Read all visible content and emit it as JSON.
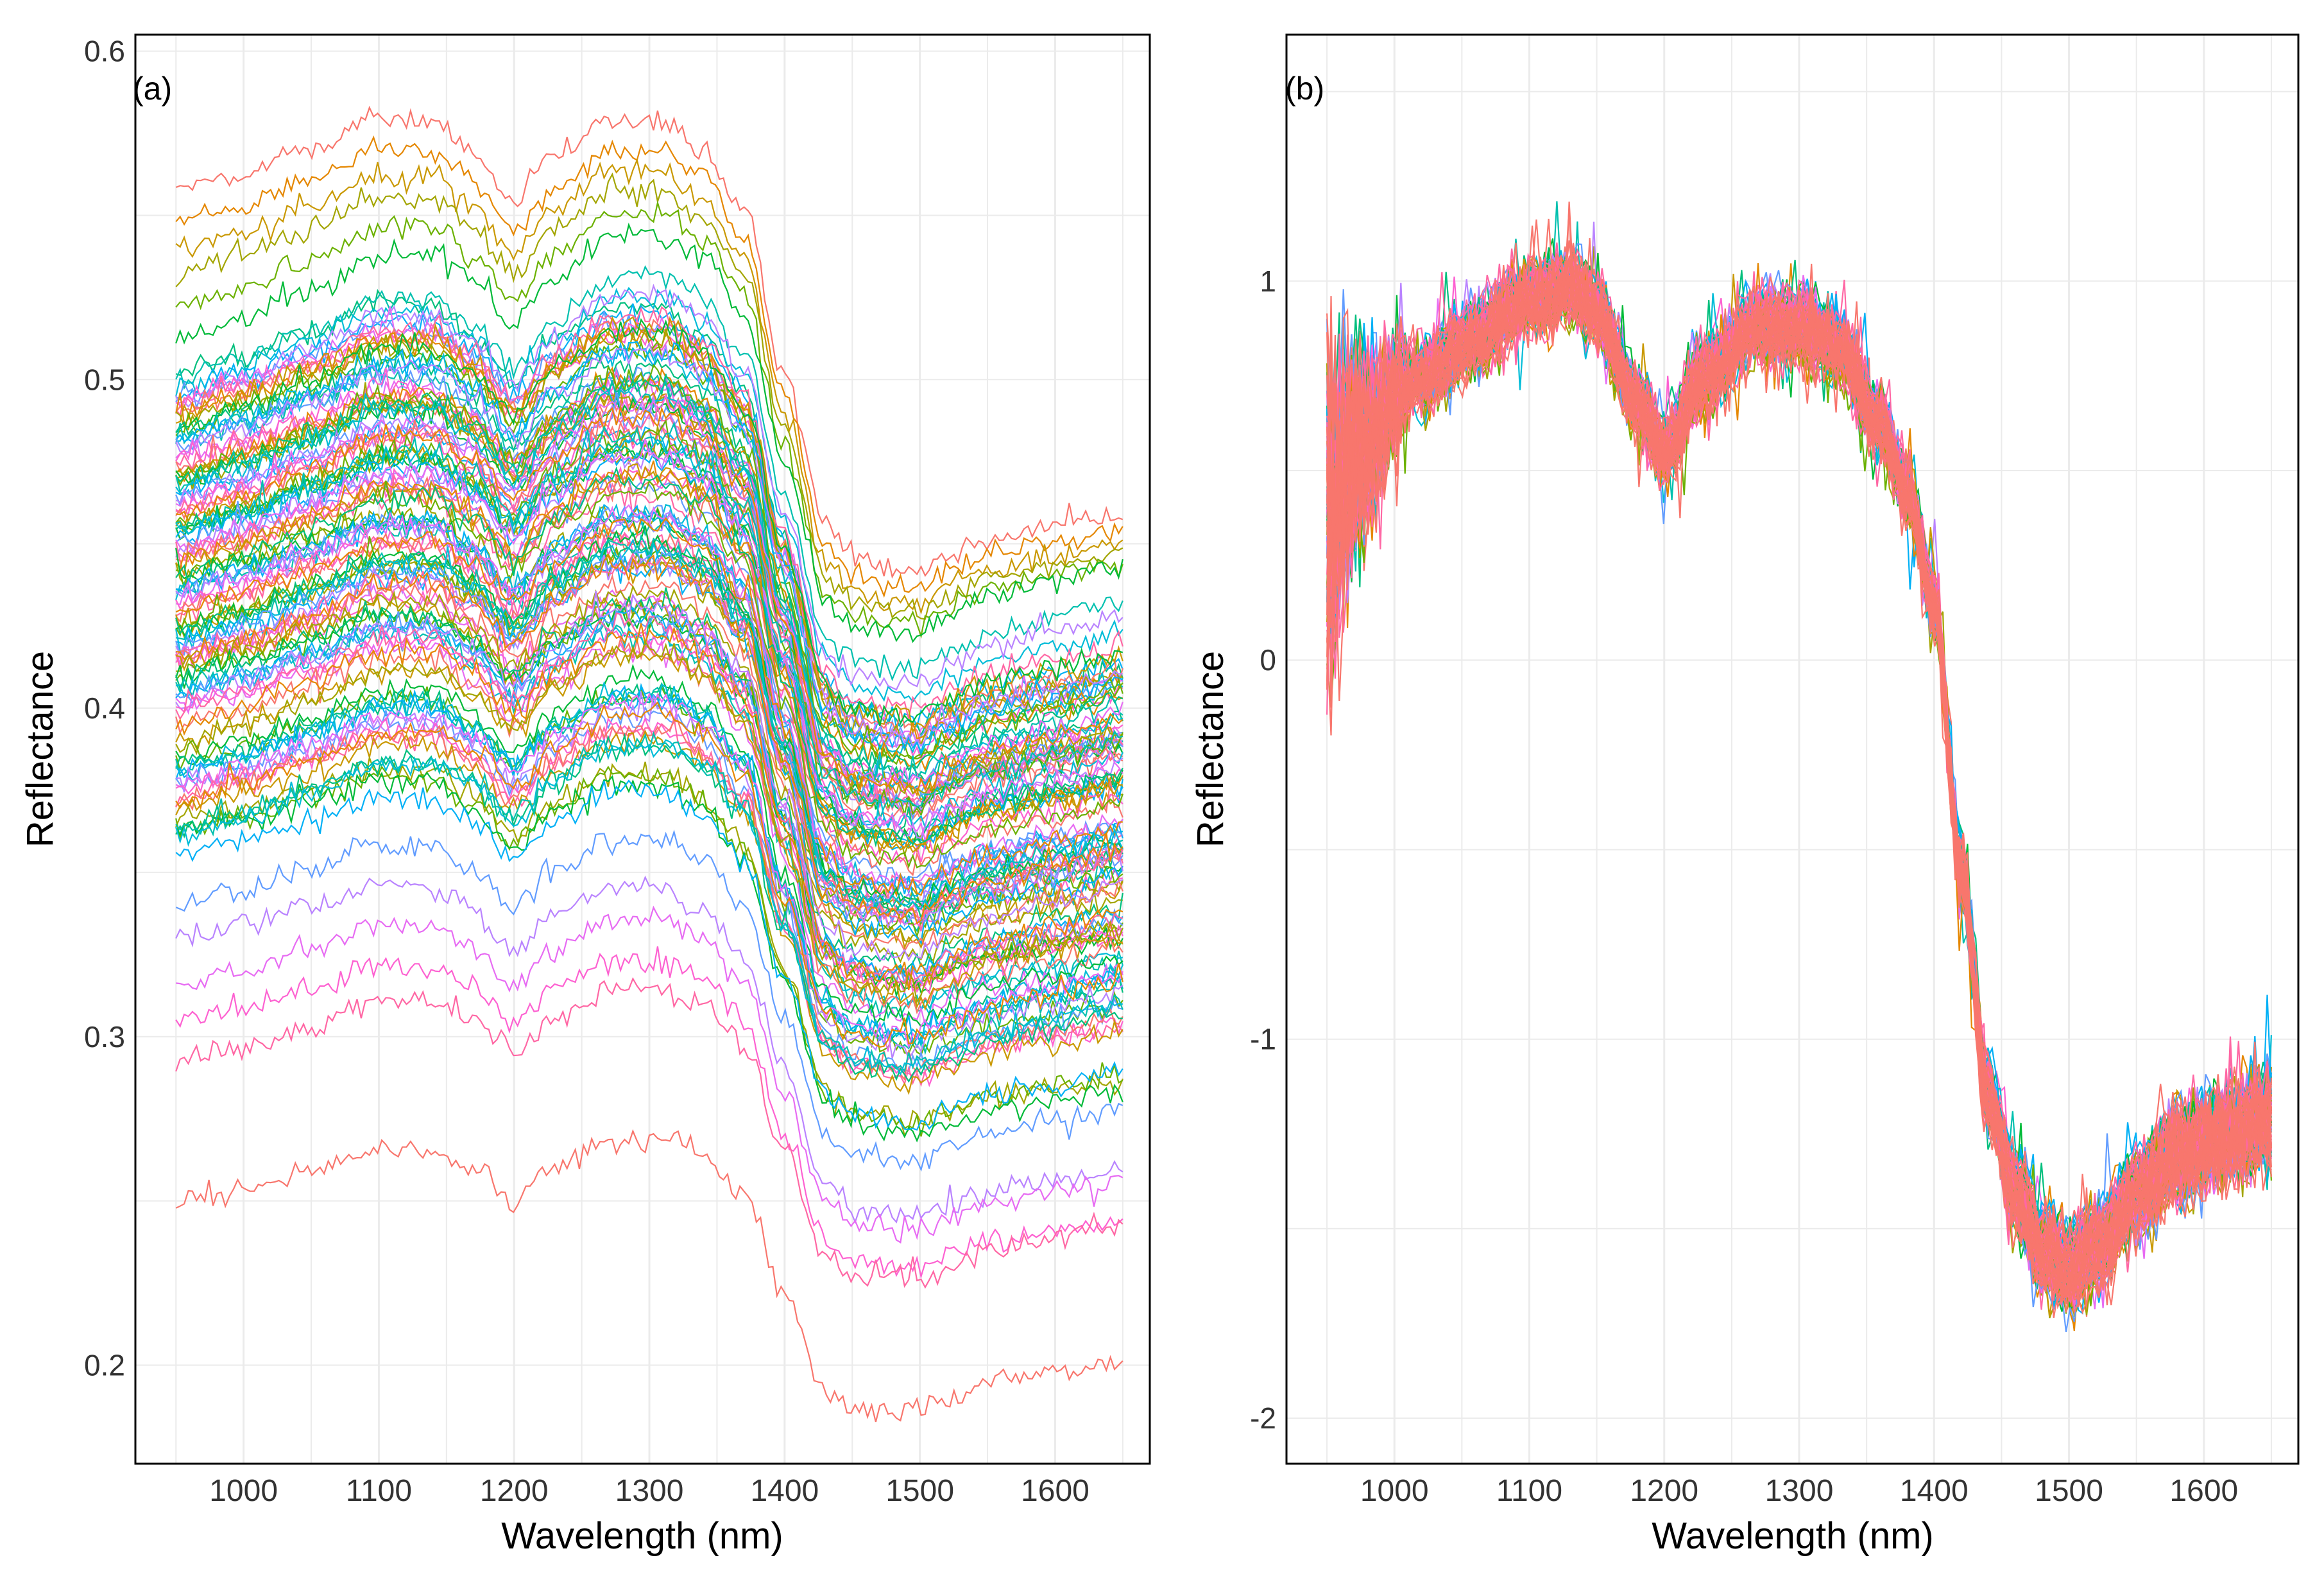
{
  "chart_data": [
    {
      "panel": "(a)",
      "type": "line",
      "xlabel": "Wavelength (nm)",
      "ylabel": "Reflectance",
      "xlim": [
        920,
        1670
      ],
      "ylim": [
        0.17,
        0.605
      ],
      "xticks": [
        "1000",
        "1100",
        "1200",
        "1300",
        "1400",
        "1500",
        "1600"
      ],
      "yticks": [
        "0.2",
        "0.3",
        "0.4",
        "0.5",
        "0.6"
      ],
      "grid": true,
      "series_count_note": "about 130 raw NIR reflectance spectra, one per sample",
      "wavelength_range_nm": [
        950,
        1650
      ],
      "shape_nodes_x": [
        950,
        1000,
        1050,
        1100,
        1140,
        1170,
        1200,
        1230,
        1270,
        1310,
        1340,
        1370,
        1400,
        1430,
        1450,
        1480,
        1500,
        1520,
        1550,
        1600,
        1650
      ],
      "shape_nodes_y": [
        0.0,
        0.005,
        0.012,
        0.02,
        0.02,
        0.012,
        0.0,
        0.012,
        0.022,
        0.022,
        0.015,
        0.0,
        -0.04,
        -0.078,
        -0.085,
        -0.087,
        -0.088,
        -0.083,
        -0.078,
        -0.074,
        -0.07
      ],
      "representative_levels_at_1000nm": [
        0.558,
        0.548,
        0.54,
        0.532,
        0.522,
        0.512,
        0.503,
        0.497,
        0.491,
        0.486,
        0.481,
        0.475,
        0.47,
        0.465,
        0.46,
        0.455,
        0.45,
        0.445,
        0.44,
        0.435,
        0.43,
        0.425,
        0.42,
        0.415,
        0.41,
        0.405,
        0.4,
        0.395,
        0.39,
        0.385,
        0.38,
        0.375,
        0.37,
        0.362,
        0.355,
        0.34,
        0.33,
        0.316,
        0.305,
        0.292,
        0.249
      ],
      "palette": [
        "#F8766D",
        "#E58700",
        "#C99800",
        "#A3A500",
        "#6BB100",
        "#00BA38",
        "#00BF7D",
        "#00C0AF",
        "#00BCD8",
        "#00B0F6",
        "#619CFF",
        "#B983FF",
        "#E76BF3",
        "#FD61D1",
        "#FF67A4"
      ]
    },
    {
      "panel": "(b)",
      "type": "line",
      "xlabel": "Wavelength (nm)",
      "ylabel": "Reflectance",
      "xlim": [
        920,
        1670
      ],
      "ylim": [
        -2.12,
        1.65
      ],
      "xticks": [
        "1000",
        "1100",
        "1200",
        "1300",
        "1400",
        "1500",
        "1600"
      ],
      "yticks": [
        "-2",
        "-1",
        "0",
        "1"
      ],
      "grid": true,
      "series_count_note": "same spectra after SNV preprocessing, overlapping band",
      "wavelength_range_nm": [
        950,
        1650
      ],
      "shape_nodes_x": [
        950,
        980,
        1020,
        1060,
        1100,
        1130,
        1150,
        1180,
        1200,
        1230,
        1270,
        1300,
        1330,
        1360,
        1380,
        1400,
        1420,
        1440,
        1460,
        1480,
        1500,
        1520,
        1550,
        1580,
        1610,
        1650
      ],
      "shape_nodes_y": [
        0.55,
        0.65,
        0.75,
        0.85,
        0.95,
        0.98,
        0.92,
        0.68,
        0.55,
        0.75,
        0.88,
        0.88,
        0.82,
        0.62,
        0.45,
        0.15,
        -0.55,
        -1.15,
        -1.4,
        -1.55,
        -1.6,
        -1.55,
        -1.4,
        -1.3,
        -1.25,
        -1.2
      ]
    }
  ]
}
